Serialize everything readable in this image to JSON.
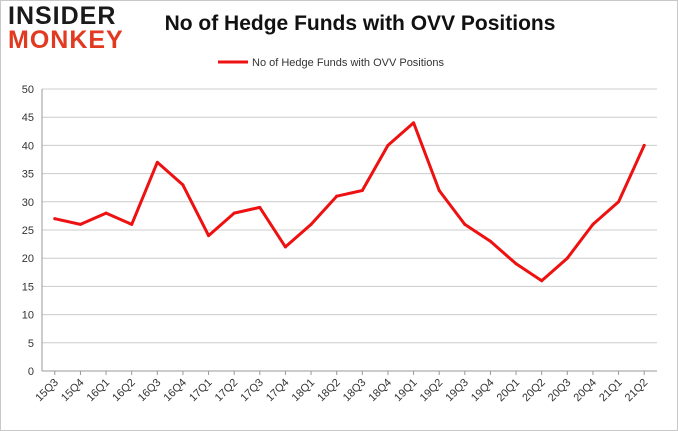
{
  "header": {
    "logo_line1": "INSIDER",
    "logo_line2": "MONKEY",
    "title": "No of Hedge Funds with OVV Positions"
  },
  "colors": {
    "series": "#ee1111",
    "grid": "#cccccc",
    "logo_accent": "#e23a20"
  },
  "chart_data": {
    "type": "line",
    "title": "No of Hedge Funds with OVV Positions",
    "xlabel": "",
    "ylabel": "",
    "ylim": [
      0,
      50
    ],
    "yticks": [
      0,
      5,
      10,
      15,
      20,
      25,
      30,
      35,
      40,
      45,
      50
    ],
    "grid": true,
    "legend_position": "top-center",
    "categories": [
      "15Q3",
      "15Q4",
      "16Q1",
      "16Q2",
      "16Q3",
      "16Q4",
      "17Q1",
      "17Q2",
      "17Q3",
      "17Q4",
      "18Q1",
      "18Q2",
      "18Q3",
      "18Q4",
      "19Q1",
      "19Q2",
      "19Q3",
      "19Q4",
      "20Q1",
      "20Q2",
      "20Q3",
      "20Q4",
      "21Q1",
      "21Q2"
    ],
    "series": [
      {
        "name": "No of Hedge Funds with OVV Positions",
        "values": [
          27,
          26,
          28,
          26,
          37,
          33,
          24,
          28,
          29,
          22,
          26,
          31,
          32,
          40,
          44,
          32,
          26,
          23,
          19,
          16,
          20,
          26,
          30,
          40
        ]
      }
    ]
  }
}
